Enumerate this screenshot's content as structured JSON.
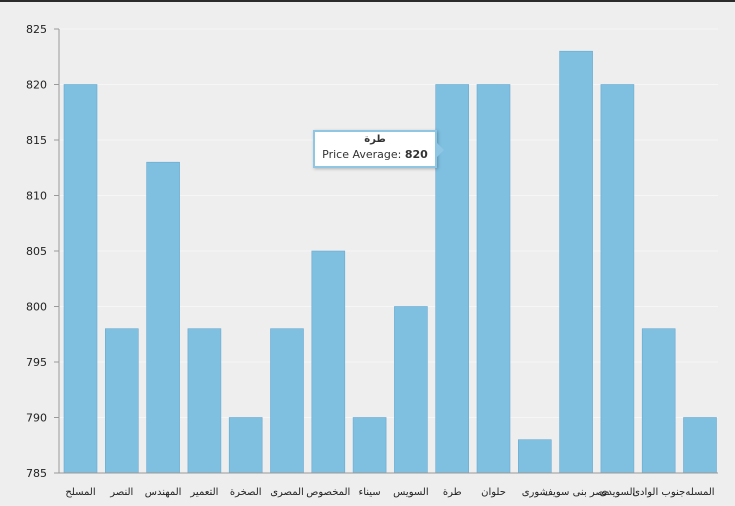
{
  "chart_data": {
    "type": "bar",
    "categories": [
      "المسلح",
      "النصر",
      "المهندس",
      "التعمير",
      "الصخرة",
      "المصرى",
      "المخصوص",
      "سيناء",
      "السويس",
      "طرة",
      "حلوان",
      "شورى",
      "مصر بنى سويف",
      "السويدى",
      "جنوب الوادى",
      "المسله"
    ],
    "values": [
      820,
      798,
      813,
      798,
      790,
      798,
      805,
      790,
      800,
      820,
      820,
      788,
      823,
      820,
      798,
      790
    ],
    "ylim": [
      785,
      825
    ],
    "yticks": [
      785,
      790,
      795,
      800,
      805,
      810,
      815,
      820,
      825
    ],
    "grid": true,
    "colors": {
      "bar": "#7fbfe0",
      "tooltip_border": "#8ec6e3"
    }
  },
  "tooltip": {
    "title": "طرة",
    "label": "Price Average:",
    "value": "820"
  }
}
